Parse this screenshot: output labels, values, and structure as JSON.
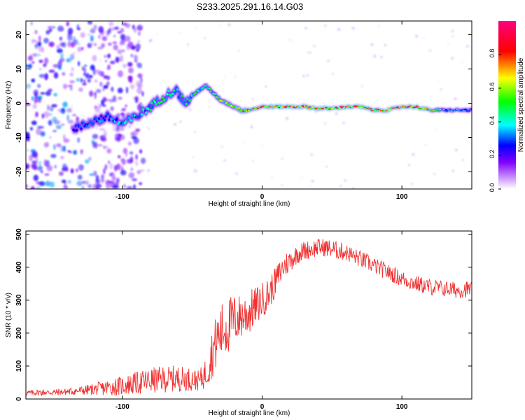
{
  "figure_title": "S233.2025.291.16.14.G03",
  "chart_data": [
    {
      "type": "heatmap",
      "panel": "spectrogram",
      "xlabel": "Height of straight line (km)",
      "ylabel": "Frequency (Hz)",
      "xlim": [
        -169,
        150
      ],
      "ylim": [
        -25,
        24
      ],
      "xticks": [
        -100,
        0,
        100
      ],
      "yticks": [
        -20,
        -10,
        0,
        10,
        20
      ],
      "colorbar": {
        "label": "Normalized spectral amplitude",
        "range": [
          0,
          1
        ],
        "ticks": [
          0.0,
          0.2,
          0.4,
          0.6,
          0.8
        ],
        "tick_labels": [
          "0.0",
          "0.2",
          "0.4",
          "0.6",
          "0.8"
        ],
        "colors": [
          "#ffffff",
          "#8000ff",
          "#0000ff",
          "#00ffff",
          "#00ff00",
          "#ffff00",
          "#ff0000",
          "#ff0080"
        ]
      },
      "ridge": {
        "x": [
          -130,
          -120,
          -110,
          -100,
          -90,
          -80,
          -70,
          -62,
          -55,
          -50,
          -45,
          -40,
          -35,
          -30,
          -25,
          -20,
          -15,
          -10,
          -5,
          0,
          10,
          20,
          30,
          40,
          50,
          60,
          70,
          80,
          90,
          100,
          110,
          120,
          130,
          140,
          150
        ],
        "y": [
          -7,
          -5,
          -4,
          -6,
          -4,
          -1,
          2,
          4,
          0,
          2,
          4,
          5,
          3,
          1,
          0,
          -1,
          -2,
          -2,
          -1.5,
          -1,
          -1,
          -1,
          -1,
          -1.5,
          -1.5,
          -1,
          -1,
          -2,
          -2,
          -1,
          -1,
          -2,
          -2,
          -2,
          -2
        ],
        "peak_amplitude": [
          0.35,
          0.4,
          0.45,
          0.5,
          0.5,
          0.55,
          0.6,
          0.6,
          0.55,
          0.55,
          0.6,
          0.6,
          0.65,
          0.7,
          0.75,
          0.8,
          0.85,
          0.9,
          0.9,
          0.9,
          0.95,
          1.0,
          0.9,
          0.95,
          1.0,
          0.95,
          1.0,
          0.9,
          0.95,
          1.0,
          1.0,
          0.9,
          0.5,
          0.45,
          0.4
        ]
      },
      "noise_region": {
        "x_range": [
          -169,
          -95
        ],
        "amplitude": 0.25
      }
    },
    {
      "type": "line",
      "panel": "snr",
      "xlabel": "Height of straight line (km)",
      "ylabel": "SNR (10 * v/v)",
      "xlim": [
        -169,
        150
      ],
      "ylim": [
        0,
        510
      ],
      "xticks": [
        -100,
        0,
        100
      ],
      "yticks": [
        0,
        100,
        200,
        300,
        400,
        500
      ],
      "color": "#f03030",
      "series": [
        {
          "name": "SNR",
          "x": [
            -169,
            -160,
            -150,
            -140,
            -130,
            -120,
            -110,
            -100,
            -90,
            -80,
            -70,
            -60,
            -50,
            -45,
            -40,
            -35,
            -30,
            -25,
            -20,
            -15,
            -10,
            -5,
            0,
            5,
            10,
            15,
            20,
            25,
            30,
            35,
            40,
            45,
            50,
            55,
            60,
            65,
            70,
            75,
            80,
            85,
            90,
            95,
            100,
            110,
            120,
            130,
            140,
            150
          ],
          "values": [
            18,
            20,
            20,
            22,
            25,
            30,
            35,
            40,
            48,
            55,
            60,
            62,
            60,
            55,
            80,
            150,
            200,
            220,
            240,
            250,
            260,
            280,
            300,
            320,
            360,
            400,
            420,
            440,
            450,
            455,
            460,
            460,
            455,
            450,
            445,
            435,
            425,
            415,
            405,
            395,
            385,
            375,
            365,
            350,
            340,
            335,
            330,
            335
          ],
          "noise": [
            8,
            10,
            10,
            10,
            14,
            18,
            25,
            30,
            35,
            40,
            40,
            40,
            35,
            30,
            50,
            80,
            90,
            90,
            80,
            70,
            70,
            60,
            55,
            50,
            45,
            40,
            35,
            30,
            30,
            28,
            28,
            28,
            28,
            28,
            26,
            26,
            26,
            26,
            25,
            25,
            25,
            25,
            25,
            25,
            25,
            25,
            25,
            25
          ]
        }
      ]
    }
  ]
}
